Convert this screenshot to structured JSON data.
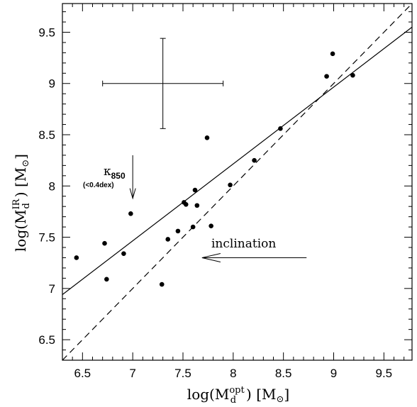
{
  "chart_data": {
    "type": "scatter",
    "xlim": [
      6.3,
      9.78
    ],
    "ylim": [
      6.3,
      9.78
    ],
    "x_ticks": [
      "6.5",
      "7",
      "7.5",
      "8",
      "8.5",
      "9",
      "9.5"
    ],
    "y_ticks": [
      "6.5",
      "7",
      "7.5",
      "8",
      "8.5",
      "9",
      "9.5"
    ],
    "x_tick_values": [
      6.5,
      7,
      7.5,
      8,
      8.5,
      9,
      9.5
    ],
    "y_tick_values": [
      6.5,
      7,
      7.5,
      8,
      8.5,
      9,
      9.5
    ],
    "xlabel": {
      "pre": "log(M",
      "sub": "d",
      "sup": "opt",
      "post": ")  [M",
      "sun": "⊙",
      "end": "]"
    },
    "ylabel": {
      "pre": "log(M",
      "sub": "d",
      "sup": "IR",
      "post": ")  [M",
      "sun": "⊙",
      "end": "]"
    },
    "points": [
      {
        "x": 6.44,
        "y": 7.3
      },
      {
        "x": 6.72,
        "y": 7.44
      },
      {
        "x": 6.74,
        "y": 7.09
      },
      {
        "x": 6.91,
        "y": 7.34
      },
      {
        "x": 6.98,
        "y": 7.73
      },
      {
        "x": 7.29,
        "y": 7.04
      },
      {
        "x": 7.35,
        "y": 7.48
      },
      {
        "x": 7.45,
        "y": 7.56
      },
      {
        "x": 7.51,
        "y": 7.84
      },
      {
        "x": 7.53,
        "y": 7.82
      },
      {
        "x": 7.6,
        "y": 7.6
      },
      {
        "x": 7.62,
        "y": 7.96
      },
      {
        "x": 7.64,
        "y": 7.81
      },
      {
        "x": 7.74,
        "y": 8.47
      },
      {
        "x": 7.78,
        "y": 7.61
      },
      {
        "x": 7.97,
        "y": 8.01
      },
      {
        "x": 8.21,
        "y": 8.25
      },
      {
        "x": 8.47,
        "y": 8.56
      },
      {
        "x": 8.93,
        "y": 9.07
      },
      {
        "x": 8.99,
        "y": 9.29
      },
      {
        "x": 9.19,
        "y": 9.08
      }
    ],
    "fit_line": {
      "x": [
        6.3,
        9.78
      ],
      "y": [
        6.94,
        9.55
      ]
    },
    "one_to_one_line": {
      "x": [
        6.3,
        9.78
      ],
      "y": [
        6.3,
        9.78
      ]
    },
    "error_bar": {
      "x": 7.3,
      "y": 9.0,
      "x_err": 0.6,
      "y_err": 0.44
    },
    "annotations": {
      "kappa_label": "κ",
      "kappa_sub": "850",
      "kappa_note": "(<0.4dex)",
      "kappa_arrow": {
        "x": 7.0,
        "y_from": 8.3,
        "y_to": 7.88
      },
      "inclination_label": "inclination",
      "inclination_arrow": {
        "y": 7.3,
        "x_from": 8.73,
        "x_to": 7.69
      }
    }
  }
}
